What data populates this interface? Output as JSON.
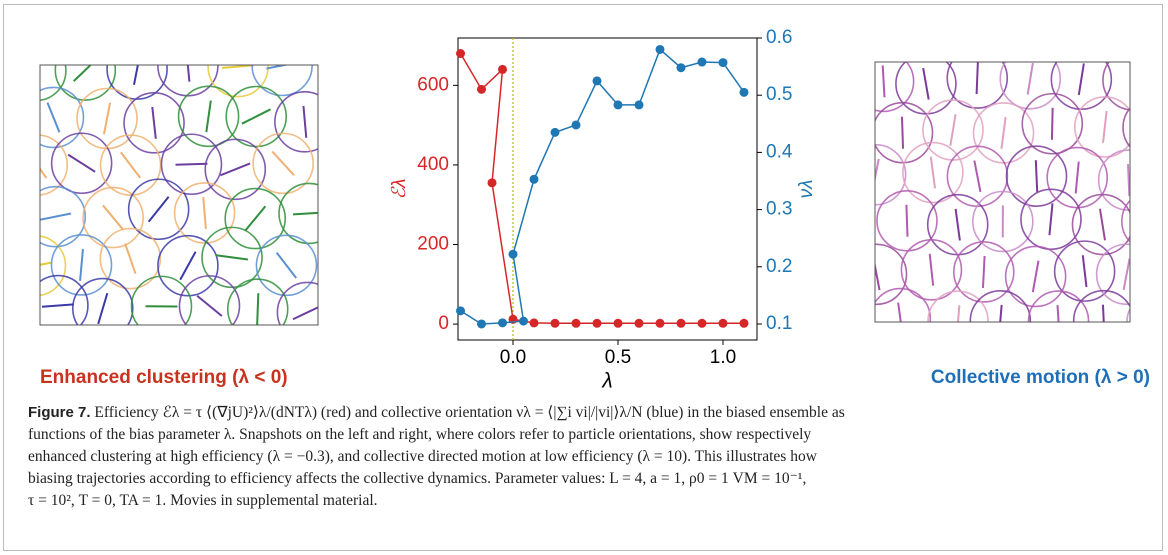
{
  "chart_data": {
    "type": "line",
    "xlabel": "λ",
    "ylabel": "ℰλ",
    "y2label": "νλ",
    "xlim": [
      -0.262,
      1.162
    ],
    "xticks": [
      {
        "value": 0,
        "label": "0.0"
      },
      {
        "value": 0.5,
        "label": "0.5"
      },
      {
        "value": 1,
        "label": "1.0"
      }
    ],
    "ylim": [
      -40,
      719
    ],
    "yticks": [
      0,
      200,
      400,
      600
    ],
    "y2lim": [
      0.072,
      0.6
    ],
    "y2ticks": [
      0.1,
      0.2,
      0.3,
      0.4,
      0.5,
      0.6
    ],
    "vline": {
      "x": 0,
      "color": "#bcbd22"
    },
    "series": [
      {
        "name": "ℰλ",
        "color": "#d62728",
        "x": [
          -0.25,
          -0.15,
          -0.05,
          -0.1,
          0,
          0.1,
          0.2,
          0.3,
          0.4,
          0.5,
          0.6,
          0.7,
          0.8,
          0.9,
          1.0,
          1.1
        ],
        "values": [
          680,
          590,
          640,
          355,
          12,
          3,
          2,
          2,
          2,
          2,
          2,
          2,
          2,
          2,
          2,
          2
        ]
      },
      {
        "name": "νλ",
        "color": "#1f77b4",
        "axis": "y2",
        "x": [
          -0.25,
          -0.15,
          -0.05,
          0.05,
          0,
          0.1,
          0.2,
          0.3,
          0.4,
          0.5,
          0.6,
          0.7,
          0.8,
          0.9,
          1.0,
          1.1
        ],
        "values": [
          0.123,
          0.1,
          0.102,
          0.105,
          0.222,
          0.353,
          0.435,
          0.448,
          0.525,
          0.483,
          0.483,
          0.58,
          0.548,
          0.558,
          0.557,
          0.505
        ]
      }
    ]
  },
  "panels": {
    "left_label": "Enhanced clustering (λ < 0)",
    "right_label": "Collective motion (λ > 0)"
  },
  "caption": {
    "label": "Figure 7.",
    "lines": [
      "Efficiency ℰλ = τ ⟨(∇jU)²⟩λ/(dNTλ) (red) and collective orientation νλ = ⟨|∑i vi|/|vi|⟩λ/N (blue) in the biased ensemble as",
      "functions of the bias parameter λ. Snapshots on the left and right, where colors refer to particle orientations, show respectively",
      "enhanced clustering at high efficiency (λ = −0.3), and collective directed motion at low efficiency (λ = 10). This illustrates how",
      "biasing trajectories according to efficiency affects the collective dynamics. Parameter values: L = 4, a = 1, ρ0 = 1 VM = 10⁻¹,",
      "τ = 10², T = 0, TA = 1. Movies in supplemental material."
    ]
  }
}
